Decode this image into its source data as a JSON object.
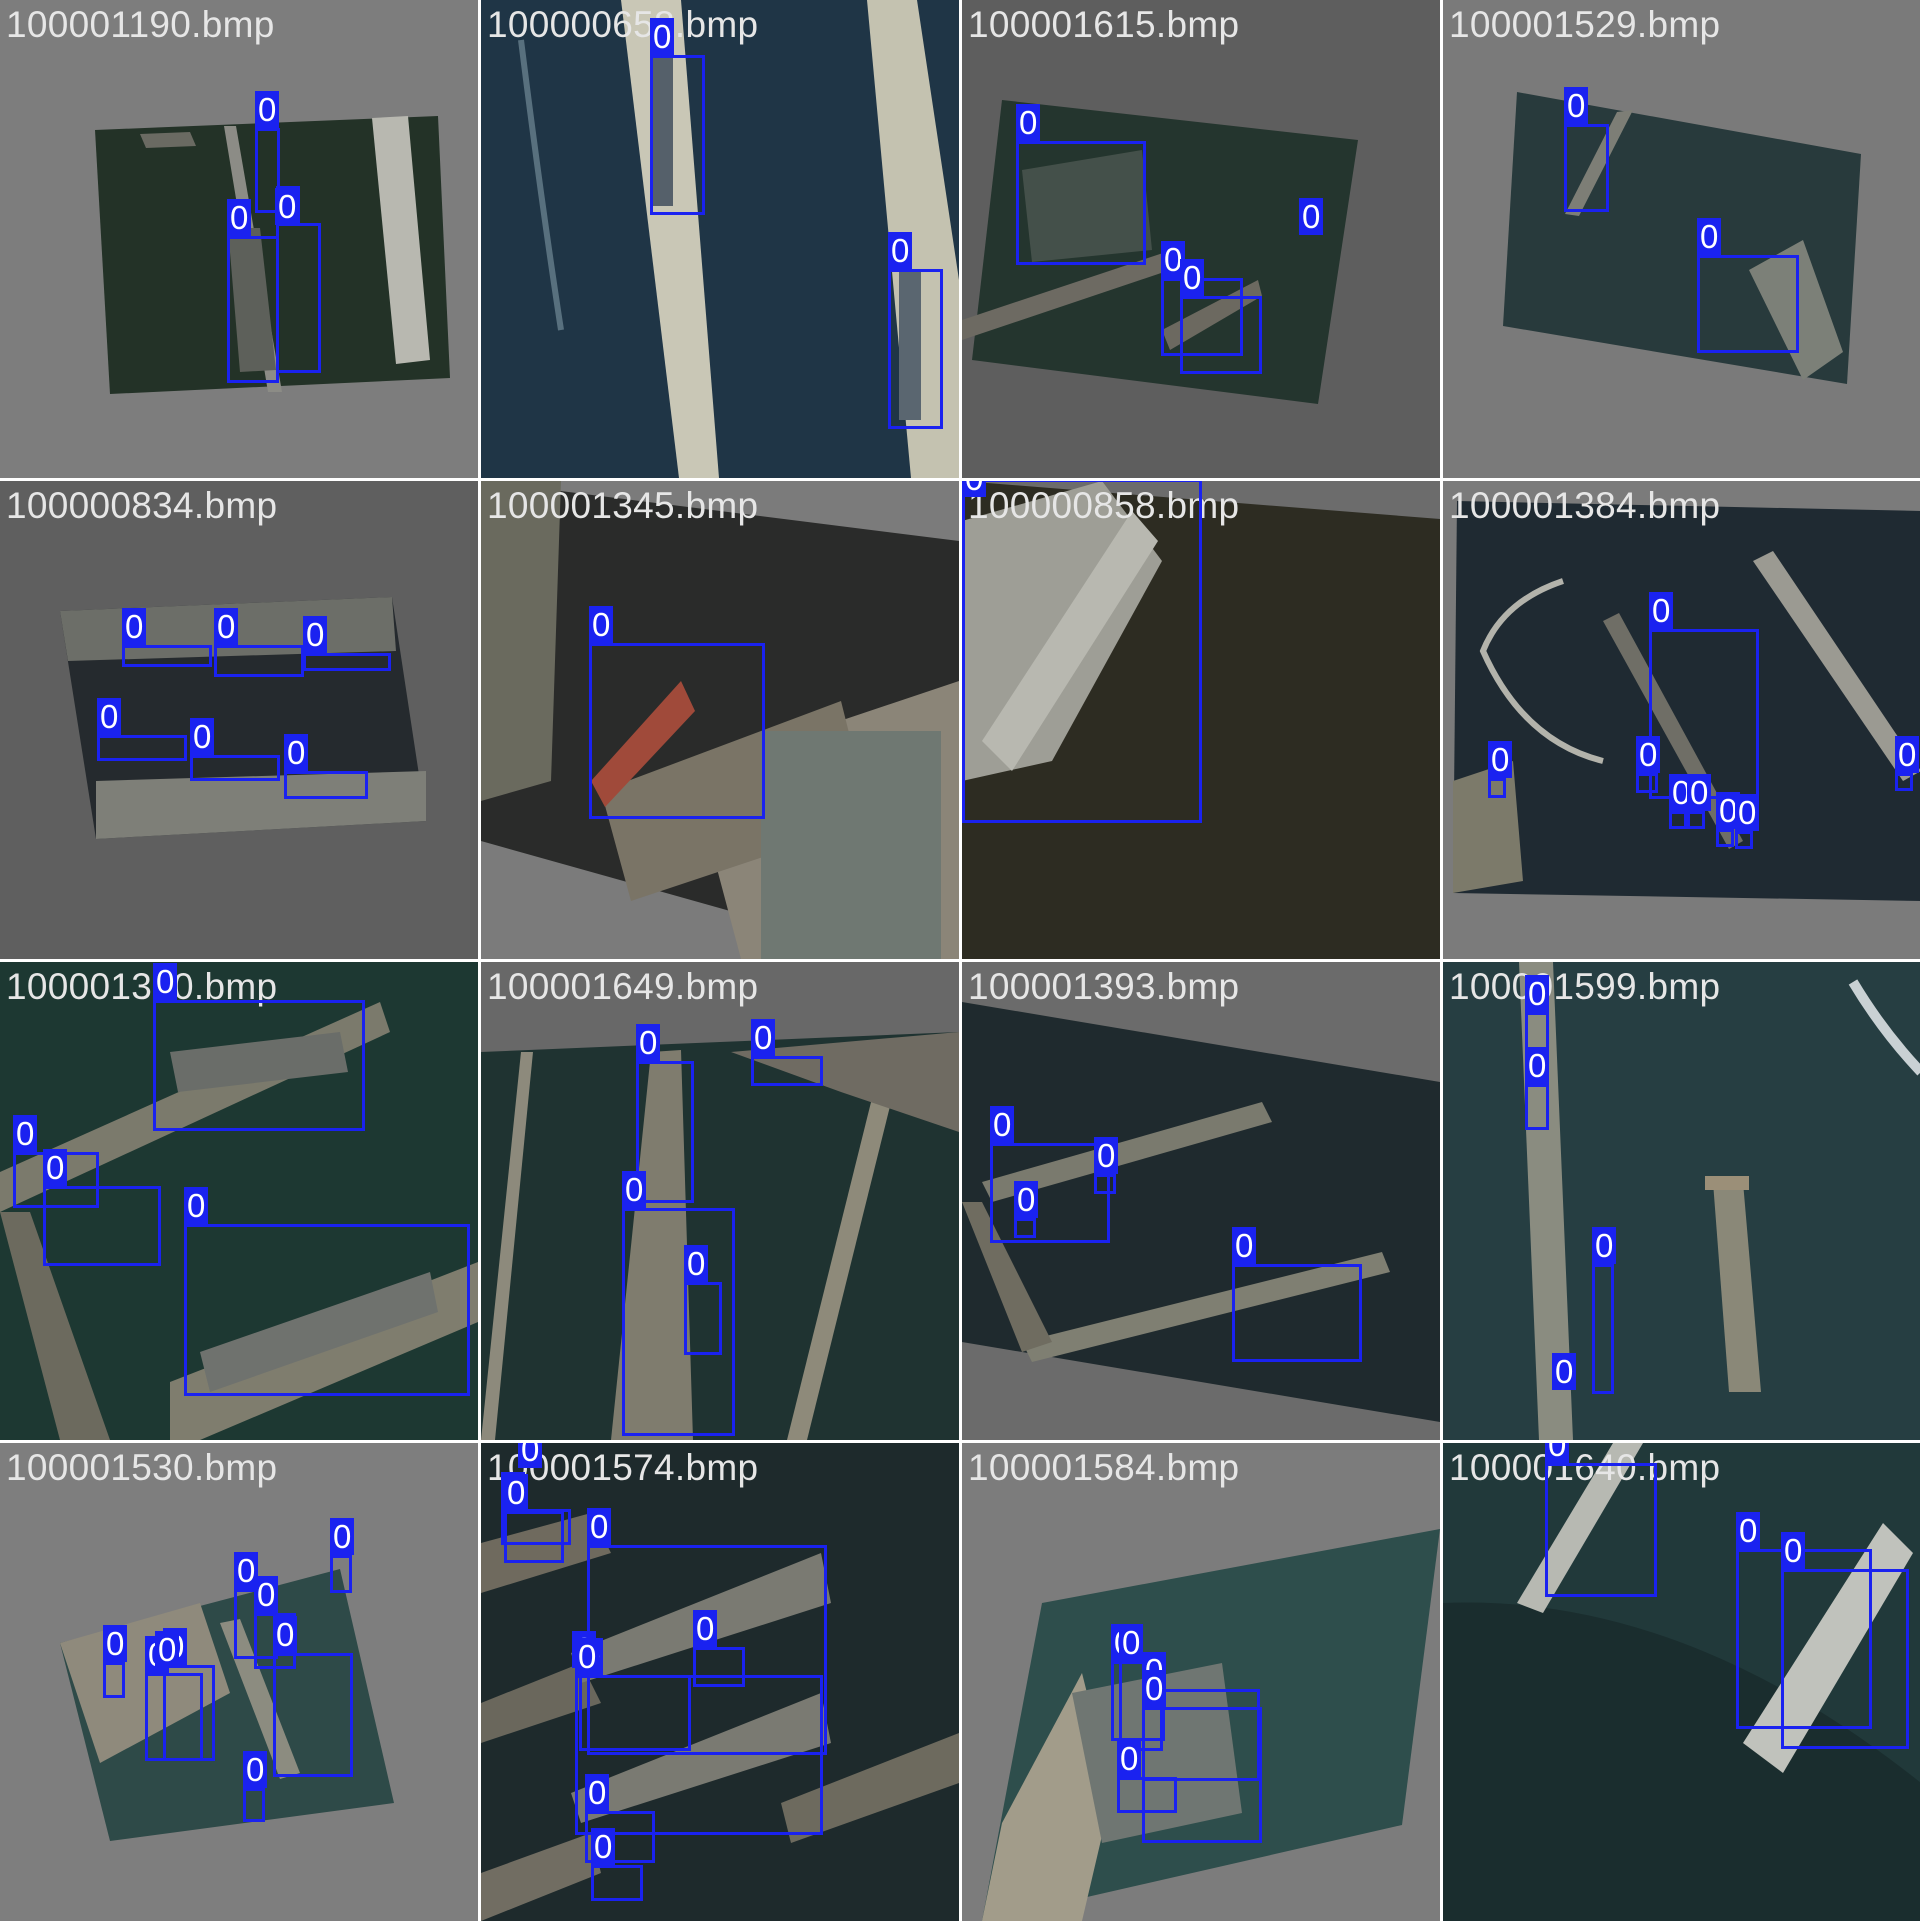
{
  "mosaic": {
    "tiles": [
      {
        "filename": "100001190.bmp",
        "detections": [
          "0",
          "0",
          "0",
          "0"
        ]
      },
      {
        "filename": "100000658.bmp",
        "detections": [
          "0",
          "0"
        ]
      },
      {
        "filename": "100001615.bmp",
        "detections": [
          "0",
          "0",
          "0",
          "0"
        ]
      },
      {
        "filename": "100001529.bmp",
        "detections": [
          "0",
          "0"
        ]
      },
      {
        "filename": "100000834.bmp",
        "detections": [
          "0",
          "0",
          "0",
          "0",
          "0",
          "0"
        ]
      },
      {
        "filename": "100001345.bmp",
        "detections": [
          "0"
        ]
      },
      {
        "filename": "100000858.bmp",
        "detections": [
          "0"
        ]
      },
      {
        "filename": "100001384.bmp",
        "detections": [
          "0",
          "0",
          "0",
          "0",
          "0",
          "0",
          "0",
          "0"
        ]
      },
      {
        "filename": "100001300.bmp",
        "detections": [
          "0",
          "0",
          "0",
          "0"
        ]
      },
      {
        "filename": "100001649.bmp",
        "detections": [
          "0",
          "0",
          "0",
          "0"
        ]
      },
      {
        "filename": "100001393.bmp",
        "detections": [
          "0",
          "0",
          "0",
          "0"
        ]
      },
      {
        "filename": "100001599.bmp",
        "detections": [
          "0",
          "0",
          "0",
          "0"
        ]
      },
      {
        "filename": "100001530.bmp",
        "detections": [
          "0",
          "0",
          "0",
          "0",
          "0",
          "0",
          "0",
          "0",
          "0"
        ]
      },
      {
        "filename": "100001574.bmp",
        "detections": [
          "0",
          "0",
          "0",
          "0",
          "0",
          "0",
          "0",
          "0",
          "0",
          "0"
        ]
      },
      {
        "filename": "100001584.bmp",
        "detections": [
          "0",
          "0",
          "0",
          "0",
          "0"
        ]
      },
      {
        "filename": "100001640.bmp",
        "detections": [
          "0",
          "0",
          "0"
        ]
      }
    ]
  },
  "colors": {
    "box": "#1a22f0",
    "label_text": "#ffffff",
    "filename_text": "#e6e6e6",
    "gutter": "#ffffff"
  }
}
